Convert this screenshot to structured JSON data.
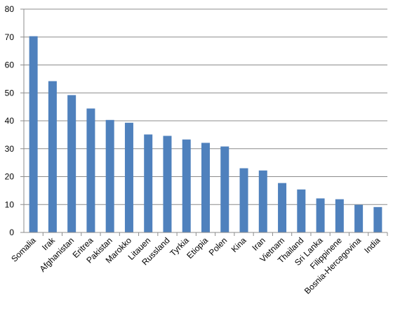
{
  "chart_data": {
    "type": "bar",
    "categories": [
      "Somalia",
      "Irak",
      "Afghanistan",
      "Eritrea",
      "Pakistan",
      "Marokko",
      "Litauen",
      "Russland",
      "Tyrkia",
      "Etiopia",
      "Polen",
      "Kina",
      "Iran",
      "Vietnam",
      "Thailand",
      "Sri Lanka",
      "Filippinene",
      "Bosnia-Hercegovina",
      "India"
    ],
    "values": [
      70.3,
      54.2,
      49.2,
      44.4,
      40.3,
      39.3,
      35.1,
      34.6,
      33.3,
      32.1,
      30.8,
      23.0,
      22.2,
      17.7,
      15.4,
      12.2,
      11.9,
      9.9,
      9.1
    ],
    "color": "#4f81bd",
    "ylim": [
      0,
      80
    ],
    "yticks": [
      0,
      10,
      20,
      30,
      40,
      50,
      60,
      70,
      80
    ],
    "grid": true
  }
}
